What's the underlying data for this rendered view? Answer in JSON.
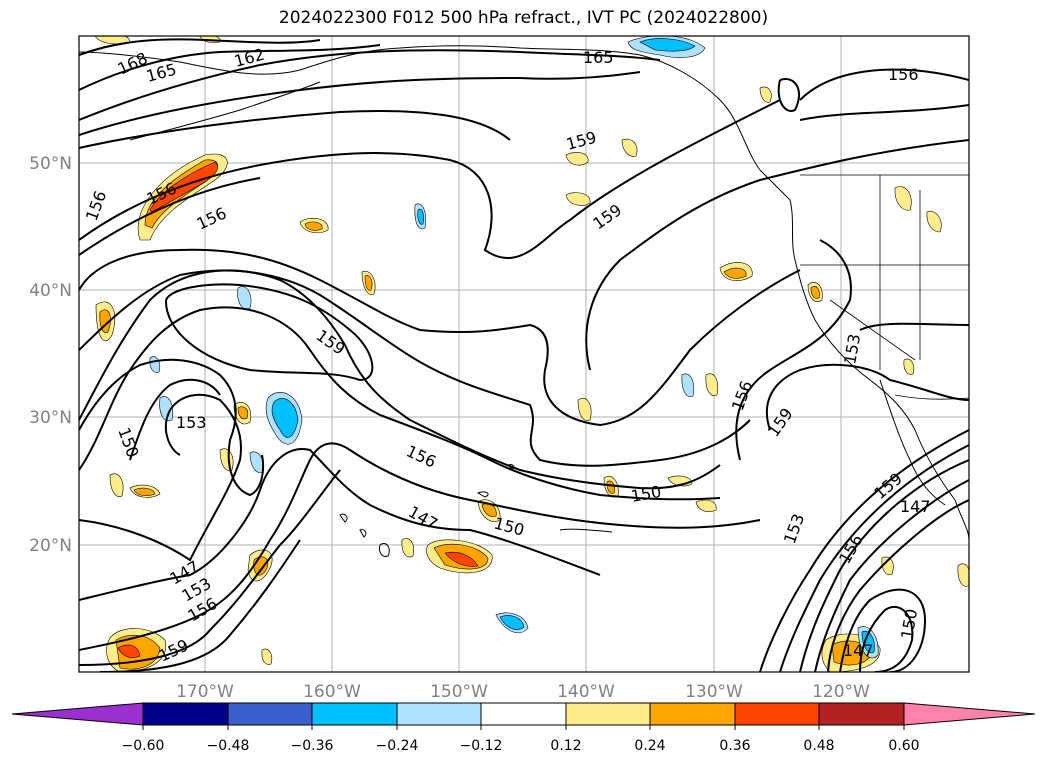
{
  "title": "2024022300 F012 500 hPa refract., IVT PC (2024022800)",
  "lat_labels": [
    "50°N",
    "40°N",
    "30°N",
    "20°N"
  ],
  "lon_labels": [
    "170°W",
    "160°W",
    "150°W",
    "140°W",
    "130°W",
    "120°W"
  ],
  "contour_labels": [
    "168",
    "165",
    "162",
    "165",
    "156",
    "159",
    "159",
    "156",
    "156",
    "156",
    "159",
    "153",
    "150",
    "153",
    "156",
    "147",
    "150",
    "150",
    "156",
    "159",
    "159",
    "147",
    "153",
    "156",
    "147",
    "153",
    "156",
    "159",
    "150",
    "147"
  ],
  "colorbar": {
    "ticks": [
      "−0.60",
      "−0.48",
      "−0.36",
      "−0.24",
      "−0.12",
      "0.12",
      "0.24",
      "0.36",
      "0.48",
      "0.60"
    ],
    "colors": [
      "#9b30d0",
      "#00008b",
      "#3a5fcd",
      "#00bfff",
      "#b0e2ff",
      "#ffffff",
      "#ffec8b",
      "#ffa500",
      "#ff4500",
      "#b22222",
      "#ff82ab",
      "#ff82ab"
    ],
    "under_color": "#9b30d0",
    "over_color": "#ff82ab"
  },
  "fill_colors": {
    "pos1": "#ffec8b",
    "pos2": "#ffa500",
    "pos3": "#ff4500",
    "neg1": "#b0e2ff",
    "neg2": "#00bfff"
  }
}
